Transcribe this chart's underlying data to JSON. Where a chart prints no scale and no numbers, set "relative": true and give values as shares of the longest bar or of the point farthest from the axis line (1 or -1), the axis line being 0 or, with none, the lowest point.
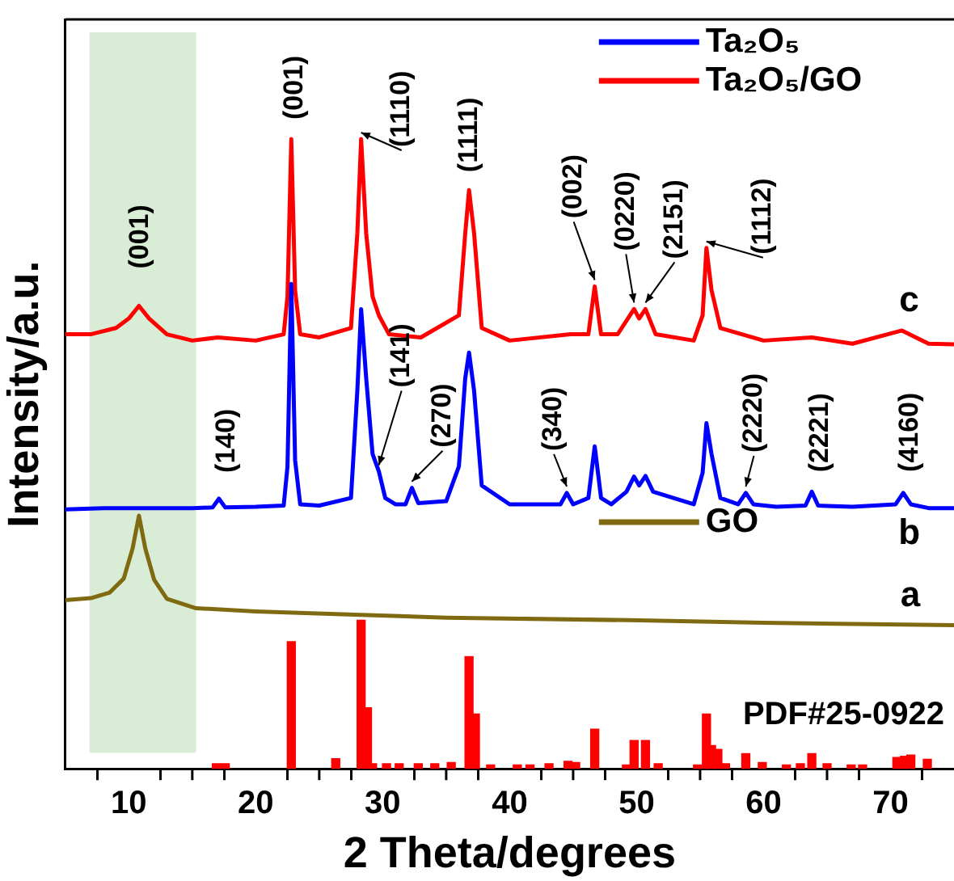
{
  "chart_data": {
    "type": "line",
    "xlabel": "2 Theta/degrees",
    "ylabel": "Intensity/a.u.",
    "relative": true,
    "tick_labels": "x",
    "grid": false,
    "legend": "top right",
    "marker": "none",
    "xlim": [
      5,
      75
    ],
    "xticks": [
      10,
      {
        "value": 15,
        "label": null
      },
      20,
      {
        "value": 25,
        "label": null
      },
      30,
      {
        "value": 35,
        "label": null
      },
      40,
      {
        "value": 45,
        "label": null
      },
      50,
      {
        "value": 55,
        "label": null
      },
      60,
      {
        "value": 65,
        "label": null
      },
      70
    ],
    "bands": [
      {
        "axis": "x",
        "from": 6.9,
        "to": 15.3,
        "color": "#d9ecd5"
      }
    ],
    "series": [
      {
        "type": "bar",
        "name": "PDF#25-0922",
        "color": "#ff0000",
        "x": [
          16.9,
          17.6,
          22.8,
          26.3,
          28.3,
          28.8,
          29.2,
          30.3,
          31.3,
          32.8,
          34.1,
          35.4,
          36.8,
          37.3,
          38.5,
          40.6,
          41.6,
          43.1,
          44.6,
          45.2,
          46.7,
          49.2,
          49.8,
          50.7,
          51.7,
          54.8,
          55.5,
          55.9,
          56.4,
          57,
          58.6,
          59.9,
          61.8,
          62.9,
          63.8,
          65,
          66.9,
          67.8,
          70.5,
          71.1,
          71.6,
          72.9
        ],
        "values": [
          0.008,
          0.008,
          0.202,
          0.016,
          0.236,
          0.097,
          0.008,
          0.008,
          0.008,
          0.008,
          0.008,
          0.01,
          0.178,
          0.087,
          0.006,
          0.006,
          0.006,
          0.008,
          0.012,
          0.01,
          0.063,
          0.006,
          0.045,
          0.045,
          0.008,
          0.006,
          0.087,
          0.037,
          0.031,
          0.008,
          0.024,
          0.01,
          0.006,
          0.008,
          0.024,
          0.008,
          0.006,
          0.006,
          0.018,
          0.02,
          0.022,
          0.015
        ]
      },
      {
        "name": "Ta₂O₅",
        "color": "#0000ff",
        "x": [
          5,
          8,
          12,
          15,
          16.6,
          17.1,
          17.6,
          20,
          22.2,
          22.5,
          22.8,
          23.1,
          23.5,
          25,
          27.5,
          28.0,
          28.3,
          28.7,
          29.2,
          29.7,
          30.2,
          31,
          31.8,
          32.3,
          32.8,
          35,
          36.0,
          36.5,
          36.8,
          37.2,
          37.8,
          40,
          44,
          44.5,
          45,
          46.2,
          46.7,
          47.2,
          48,
          49.2,
          49.8,
          50.2,
          50.7,
          51.3,
          54.5,
          55.2,
          55.5,
          55.9,
          56.6,
          58,
          58.6,
          59.2,
          61,
          63.3,
          63.8,
          64.3,
          67,
          70.4,
          71,
          71.6,
          73,
          75
        ],
        "values": [
          0.412,
          0.414,
          0.414,
          0.414,
          0.415,
          0.429,
          0.415,
          0.416,
          0.418,
          0.48,
          0.77,
          0.49,
          0.42,
          0.418,
          0.43,
          0.6,
          0.73,
          0.62,
          0.5,
          0.472,
          0.43,
          0.42,
          0.42,
          0.446,
          0.422,
          0.425,
          0.48,
          0.62,
          0.661,
          0.6,
          0.45,
          0.42,
          0.42,
          0.438,
          0.42,
          0.43,
          0.512,
          0.43,
          0.42,
          0.44,
          0.464,
          0.45,
          0.465,
          0.44,
          0.42,
          0.47,
          0.549,
          0.5,
          0.43,
          0.42,
          0.438,
          0.42,
          0.416,
          0.418,
          0.44,
          0.418,
          0.416,
          0.42,
          0.438,
          0.42,
          0.414,
          0.414
        ]
      },
      {
        "name": "Ta₂O₅/GO",
        "color": "#ff0000",
        "x": [
          5,
          7,
          9,
          10,
          10.8,
          11.6,
          13,
          15,
          17,
          20,
          22.2,
          22.5,
          22.8,
          23.1,
          23.5,
          25,
          27.5,
          28.0,
          28.3,
          28.7,
          29.2,
          29.7,
          30.5,
          33,
          36.0,
          36.5,
          36.8,
          37.2,
          37.8,
          40,
          44.8,
          46.2,
          46.7,
          47.2,
          48.5,
          49.8,
          50.2,
          50.7,
          51.5,
          54.5,
          55.2,
          55.5,
          55.9,
          56.6,
          60,
          63.8,
          67,
          70.9,
          73,
          75
        ],
        "values": [
          0.69,
          0.69,
          0.7,
          0.715,
          0.735,
          0.715,
          0.69,
          0.68,
          0.685,
          0.68,
          0.69,
          0.75,
          1.0,
          0.76,
          0.69,
          0.685,
          0.7,
          0.85,
          1.0,
          0.85,
          0.75,
          0.72,
          0.69,
          0.685,
          0.72,
          0.85,
          0.919,
          0.85,
          0.7,
          0.68,
          0.69,
          0.69,
          0.766,
          0.69,
          0.69,
          0.73,
          0.715,
          0.73,
          0.69,
          0.68,
          0.72,
          0.827,
          0.76,
          0.7,
          0.68,
          0.685,
          0.675,
          0.696,
          0.675,
          0.674
        ]
      },
      {
        "name": "GO",
        "color": "#7f6a12",
        "x": [
          5,
          7,
          8.5,
          9.6,
          10.3,
          10.8,
          11.3,
          12,
          13,
          15.3,
          20,
          27.3,
          35,
          49.4,
          60,
          75
        ],
        "values": [
          0.268,
          0.271,
          0.28,
          0.302,
          0.35,
          0.402,
          0.35,
          0.3,
          0.27,
          0.255,
          0.25,
          0.245,
          0.24,
          0.236,
          0.232,
          0.228
        ]
      }
    ],
    "annotations": [
      {
        "text": "(001)",
        "x": 10.8,
        "y": 0.735
      },
      {
        "text": "(001)",
        "x": 22.8,
        "y": 1.0
      },
      {
        "text": "(1110)",
        "x": 28.3,
        "y": 1.0
      },
      {
        "text": "(1111)",
        "x": 36.8,
        "y": 0.919
      },
      {
        "text": "(002)",
        "x": 46.7,
        "y": 0.766
      },
      {
        "text": "(0220)",
        "x": 49.8,
        "y": 0.73
      },
      {
        "text": "(2151)",
        "x": 50.7,
        "y": 0.73
      },
      {
        "text": "(1112)",
        "x": 55.5,
        "y": 0.827
      },
      {
        "text": "(140)",
        "x": 17.1,
        "y": 0.429
      },
      {
        "text": "(141)",
        "x": 29.7,
        "y": 0.472
      },
      {
        "text": "(270)",
        "x": 32.3,
        "y": 0.446
      },
      {
        "text": "(340)",
        "x": 44.5,
        "y": 0.438
      },
      {
        "text": "(2220)",
        "x": 58.6,
        "y": 0.438
      },
      {
        "text": "(2221)",
        "x": 63.8,
        "y": 0.44
      },
      {
        "text": "(4160)",
        "x": 71,
        "y": 0.438
      },
      {
        "text": "c",
        "x": 73,
        "y": 0.675
      },
      {
        "text": "b",
        "x": 73,
        "y": 0.414
      },
      {
        "text": "a",
        "x": 75,
        "y": 0.228
      }
    ]
  }
}
